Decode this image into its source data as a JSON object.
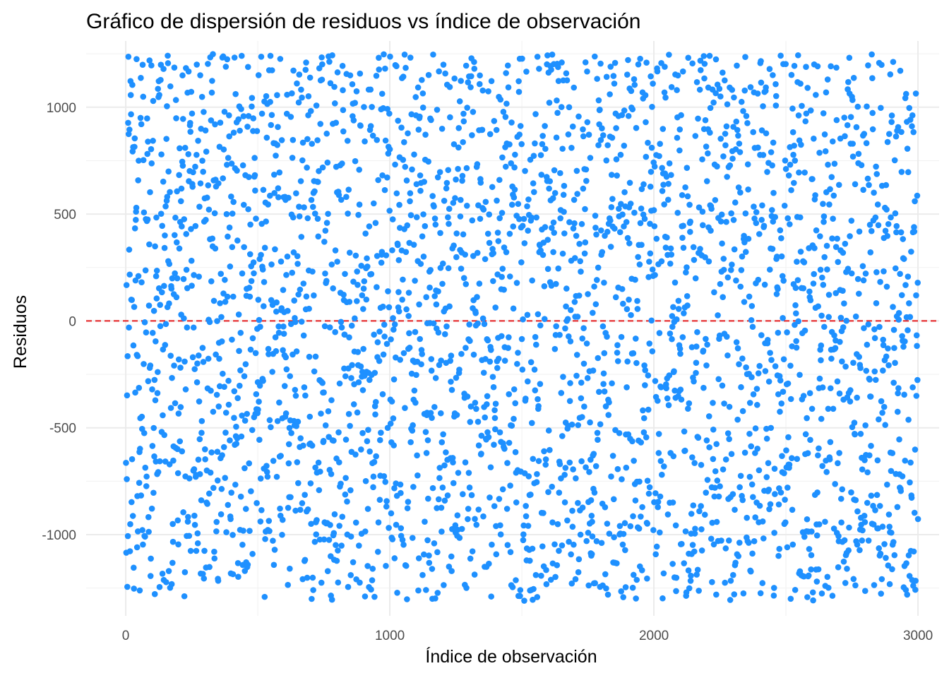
{
  "chart_data": {
    "type": "scatter",
    "title": "Gráfico de dispersión de residuos vs índice de observación",
    "xlabel": "Índice de observación",
    "ylabel": "Residuos",
    "xlim": [
      -150,
      3080
    ],
    "ylim": [
      -1380,
      1310
    ],
    "x_ticks": [
      0,
      1000,
      2000,
      3000
    ],
    "x_tick_labels": [
      "0",
      "1000",
      "2000",
      "3000"
    ],
    "x_minor_ticks": [
      500,
      1500,
      2500
    ],
    "y_ticks": [
      -1000,
      -500,
      0,
      500,
      1000
    ],
    "y_tick_labels": [
      "-1000",
      "-500",
      "0",
      "500",
      "1000"
    ],
    "y_minor_ticks": [
      -1250,
      -750,
      -250,
      250,
      750,
      1250
    ],
    "grid": true,
    "legend": "none",
    "reference_line": {
      "y": 0,
      "style": "dashed",
      "color": "#E41A1C"
    },
    "point_color": "#1E90FF",
    "series": [
      {
        "n_points": 3000,
        "x_range": [
          1,
          3000
        ],
        "y_range": [
          -1330,
          1285
        ],
        "note_values": "3000 residual points, approximately uniform between -1300 and 1250; points are generated deterministically from seed",
        "seed": 42
      }
    ]
  }
}
